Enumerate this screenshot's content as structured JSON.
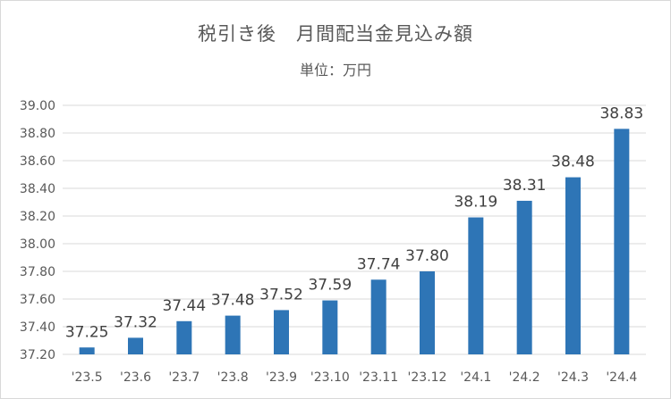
{
  "chart_data": {
    "type": "bar",
    "title": "税引き後　月間配当金見込み額",
    "subtitle": "単位：万円",
    "categories": [
      "'23.5",
      "'23.6",
      "'23.7",
      "'23.8",
      "'23.9",
      "'23.10",
      "'23.11",
      "'23.12",
      "'24.1",
      "'24.2",
      "'24.3",
      "'24.4"
    ],
    "values": [
      37.25,
      37.32,
      37.44,
      37.48,
      37.52,
      37.59,
      37.74,
      37.8,
      38.19,
      38.31,
      38.48,
      38.83
    ],
    "value_labels": [
      "37.25",
      "37.32",
      "37.44",
      "37.48",
      "37.52",
      "37.59",
      "37.74",
      "37.80",
      "38.19",
      "38.31",
      "38.48",
      "38.83"
    ],
    "ylim": [
      37.2,
      39.0
    ],
    "y_ticks": [
      "37.20",
      "37.40",
      "37.60",
      "37.80",
      "38.00",
      "38.20",
      "38.40",
      "38.60",
      "38.80",
      "39.00"
    ],
    "grid": "horizontal",
    "legend": "none",
    "colors": {
      "bar": "#2e75b6",
      "grid": "#d9d9d9",
      "text": "#595959",
      "label": "#404040"
    }
  }
}
